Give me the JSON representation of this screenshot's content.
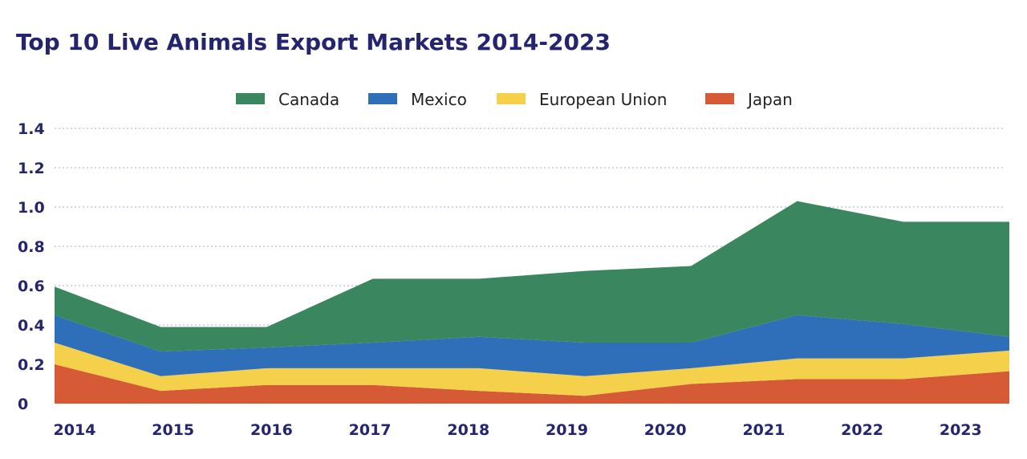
{
  "chart_data": {
    "type": "area",
    "stacked": true,
    "title": "Top 10 Live Animals Export Markets 2014-2023",
    "xlabel": "",
    "ylabel": "",
    "ylim": [
      0,
      1.4
    ],
    "y_ticks": [
      "0",
      "0.2",
      "0.4",
      "0.6",
      "0.8",
      "1.0",
      "1.2",
      "1.4"
    ],
    "grid": true,
    "legend_position": "top",
    "categories": [
      "2014",
      "2015",
      "2016",
      "2017",
      "2018",
      "2019",
      "2020",
      "2021",
      "2022",
      "2023"
    ],
    "series": [
      {
        "name": "Japan",
        "color": "#d65a35",
        "values": [
          0.2,
          0.065,
          0.095,
          0.095,
          0.065,
          0.04,
          0.1,
          0.125,
          0.125,
          0.165
        ]
      },
      {
        "name": "European Union",
        "color": "#f5d04a",
        "values": [
          0.11,
          0.075,
          0.085,
          0.085,
          0.115,
          0.1,
          0.08,
          0.105,
          0.105,
          0.105
        ]
      },
      {
        "name": "Mexico",
        "color": "#2f6fba",
        "values": [
          0.14,
          0.125,
          0.105,
          0.13,
          0.16,
          0.17,
          0.13,
          0.22,
          0.175,
          0.07
        ]
      },
      {
        "name": "Canada",
        "color": "#3a865f",
        "values": [
          0.145,
          0.125,
          0.105,
          0.325,
          0.295,
          0.365,
          0.39,
          0.58,
          0.52,
          0.585
        ]
      }
    ],
    "legend_order": [
      "Canada",
      "Mexico",
      "European Union",
      "Japan"
    ]
  }
}
